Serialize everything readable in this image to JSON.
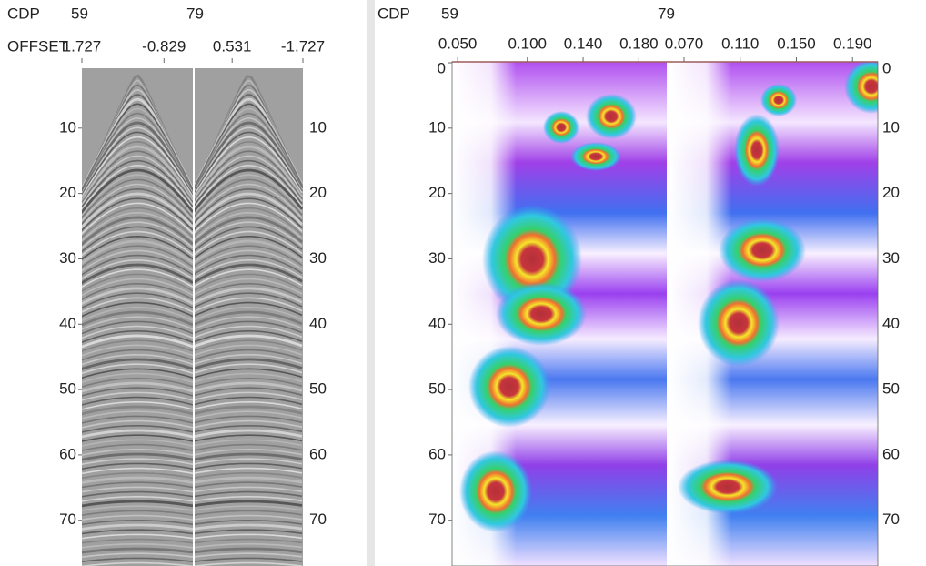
{
  "gathers": {
    "cdp_label": "CDP",
    "cdp": [
      59,
      79
    ],
    "offset_label": "OFFSET",
    "offset_lim": [
      1.727,
      -1.727
    ],
    "offset_ticks": [
      [
        1.727,
        -0.829
      ],
      [
        0.531,
        -1.727
      ]
    ],
    "depth_lim": [
      0,
      77
    ],
    "depth_ticks": [
      10,
      20,
      30,
      40,
      50,
      60,
      70
    ]
  },
  "semblance": {
    "cdp_label": "CDP",
    "cdp": [
      59,
      79
    ],
    "velocity_lim": [
      [
        0.046,
        0.2
      ],
      [
        0.059,
        0.208
      ]
    ],
    "velocity_ticks": [
      [
        {
          "value": 0.05,
          "label": "0.050"
        },
        {
          "value": 0.1,
          "label": "0.100"
        },
        {
          "value": 0.14,
          "label": "0.140"
        },
        {
          "value": 0.18,
          "label": "0.180"
        }
      ],
      [
        {
          "value": 0.07,
          "label": "0.070"
        },
        {
          "value": 0.11,
          "label": "0.110"
        },
        {
          "value": 0.15,
          "label": "0.150"
        },
        {
          "value": 0.19,
          "label": "0.190"
        }
      ]
    ],
    "depth_lim": [
      0,
      77
    ],
    "depth_ticks": [
      0,
      10,
      20,
      30,
      40,
      50,
      60,
      70
    ]
  }
}
